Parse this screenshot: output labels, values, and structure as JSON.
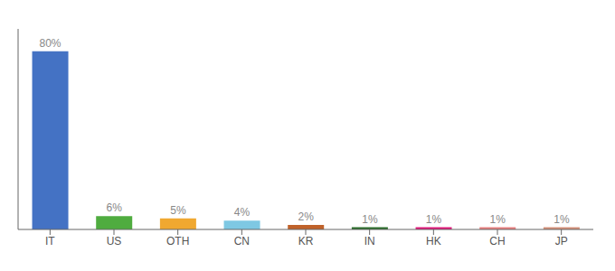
{
  "chart_data": {
    "type": "bar",
    "categories": [
      "IT",
      "US",
      "OTH",
      "CN",
      "KR",
      "IN",
      "HK",
      "CH",
      "JP"
    ],
    "values": [
      80,
      6,
      5,
      4,
      2,
      1,
      1,
      1,
      1
    ],
    "value_labels": [
      "80%",
      "6%",
      "5%",
      "4%",
      "2%",
      "1%",
      "1%",
      "1%",
      "1%"
    ],
    "colors": [
      "#4472c4",
      "#4fac3f",
      "#f0a830",
      "#7ec8e3",
      "#c0622a",
      "#2d6e2d",
      "#e0197a",
      "#e88080",
      "#d4917a"
    ],
    "ylim": [
      0,
      90
    ],
    "grid": false,
    "data_labels": true,
    "tick_labels": "x"
  }
}
